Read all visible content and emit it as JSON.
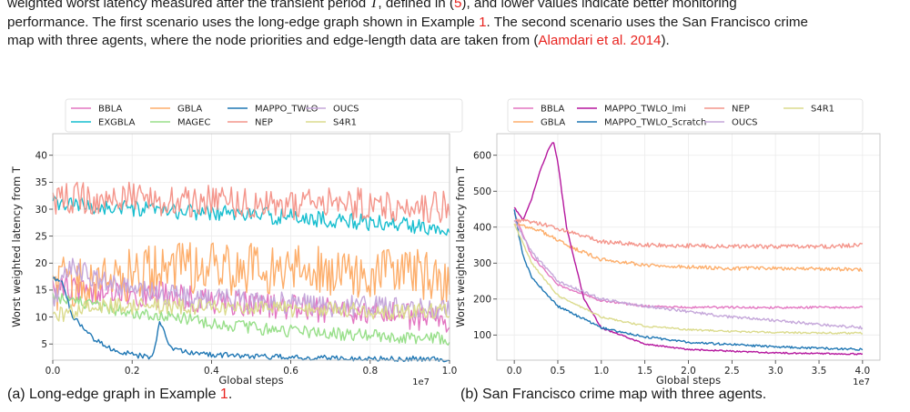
{
  "paragraph": {
    "line1_a": "weighted worst latency measured after the transient period ",
    "line1_symbol": "T",
    "line1_b": ", defined in (",
    "line1_eq": "5",
    "line1_c": "), and lower values indicate better monitoring",
    "line2_a": "performance. The first scenario uses the long-edge graph shown in Example ",
    "line2_ref": "1",
    "line2_b": ". The second scenario uses the San Francisco crime",
    "line3_a": "map with three agents, where the node priorities and edge-length data are taken from (",
    "line3_cite": "Alamdari et al. 2014",
    "line3_b": ")."
  },
  "captions": {
    "a_text": "(a) Long-edge graph in Example ",
    "a_ref": "1",
    "a_end": ".",
    "b_text": "(b) San Francisco crime map with three agents."
  },
  "colors": {
    "BBLA": "#e377c2",
    "EXGBLA": "#17becf",
    "GBLA": "#fdae6b",
    "MAGEC": "#98df8a",
    "MAPPO_TWLO": "#1f77b4",
    "MAPPO_TWLO_Imi": "#b5179e",
    "MAPPO_TWLO_Scratch": "#1f77b4",
    "NEP": "#f4958b",
    "OUCS": "#c5a7da",
    "S4R1": "#dbdb8d"
  },
  "chart_data": [
    {
      "type": "line",
      "xlabel": "Global steps",
      "ylabel": "Worst weighted latency from T",
      "x_multiplier": "1e7",
      "xlim": [
        0,
        1.0
      ],
      "ylim": [
        2,
        44
      ],
      "xticks": [
        0.0,
        0.2,
        0.4,
        0.6,
        0.8,
        1.0
      ],
      "yticks": [
        5,
        10,
        15,
        20,
        25,
        30,
        35,
        40
      ],
      "grid": true,
      "legend_position": "top",
      "legend_columns": 5,
      "legend": [
        "BBLA",
        "EXGBLA",
        "GBLA",
        "MAGEC",
        "MAPPO_TWLO",
        "NEP",
        "OUCS",
        "S4R1"
      ],
      "series": [
        {
          "name": "BBLA",
          "x": [
            0,
            0.1,
            0.2,
            0.3,
            0.4,
            0.5,
            0.6,
            0.7,
            0.8,
            0.9,
            1.0
          ],
          "values": [
            16,
            15,
            14.5,
            14,
            13,
            12.5,
            12,
            11,
            10.5,
            10,
            9.5
          ],
          "noise": 2.5
        },
        {
          "name": "EXGBLA",
          "x": [
            0,
            0.1,
            0.2,
            0.3,
            0.4,
            0.5,
            0.6,
            0.7,
            0.8,
            0.9,
            1.0
          ],
          "values": [
            31,
            30.5,
            30,
            29.5,
            29.5,
            29,
            28.5,
            28,
            27.5,
            27,
            26.5
          ],
          "noise": 1.5
        },
        {
          "name": "GBLA",
          "x": [
            0,
            0.1,
            0.2,
            0.3,
            0.4,
            0.5,
            0.6,
            0.7,
            0.8,
            0.9,
            1.0
          ],
          "values": [
            16,
            17,
            18,
            19,
            19,
            19,
            19,
            19,
            18,
            18,
            17
          ],
          "noise": 5
        },
        {
          "name": "MAGEC",
          "x": [
            0,
            0.1,
            0.2,
            0.3,
            0.4,
            0.5,
            0.6,
            0.7,
            0.8,
            0.9,
            1.0
          ],
          "values": [
            14,
            12,
            11,
            10,
            9,
            8,
            7.5,
            7,
            6.5,
            6.3,
            6
          ],
          "noise": 1.2
        },
        {
          "name": "MAPPO_TWLO",
          "x": [
            0,
            0.02,
            0.05,
            0.08,
            0.1,
            0.15,
            0.2,
            0.25,
            0.27,
            0.3,
            0.4,
            0.5,
            0.6,
            0.8,
            1.0
          ],
          "values": [
            17,
            17,
            10,
            8,
            6,
            4,
            3,
            2.5,
            9,
            4,
            3,
            2.8,
            2.5,
            2.3,
            2.2
          ],
          "noise": 0.5
        },
        {
          "name": "NEP",
          "x": [
            0,
            0.1,
            0.2,
            0.3,
            0.4,
            0.5,
            0.6,
            0.7,
            0.8,
            0.9,
            1.0
          ],
          "values": [
            32,
            32,
            32,
            31.5,
            31.5,
            31,
            31,
            31,
            31,
            30.5,
            30.5
          ],
          "noise": 3
        },
        {
          "name": "OUCS",
          "x": [
            0,
            0.05,
            0.1,
            0.2,
            0.3,
            0.4,
            0.5,
            0.6,
            0.7,
            0.8,
            0.9,
            1.0
          ],
          "values": [
            13,
            20,
            17,
            15,
            14,
            13.5,
            13,
            12.5,
            12,
            12,
            11.5,
            11.5
          ],
          "noise": 2
        },
        {
          "name": "S4R1",
          "x": [
            0,
            0.1,
            0.2,
            0.3,
            0.4,
            0.5,
            0.6,
            0.7,
            0.8,
            0.9,
            1.0
          ],
          "values": [
            10,
            12,
            12,
            12,
            12,
            11.5,
            11.5,
            11.5,
            11,
            11,
            11
          ],
          "noise": 1.5
        }
      ]
    },
    {
      "type": "line",
      "xlabel": "Global steps",
      "ylabel": "Worst weighted latency from T",
      "x_multiplier": "1e7",
      "xlim": [
        -0.2,
        4.2
      ],
      "ylim": [
        30,
        660
      ],
      "xticks": [
        0.0,
        0.5,
        1.0,
        1.5,
        2.0,
        2.5,
        3.0,
        3.5,
        4.0
      ],
      "yticks": [
        100,
        200,
        300,
        400,
        500,
        600
      ],
      "grid": true,
      "legend_position": "top",
      "legend_columns": 5,
      "legend": [
        "BBLA",
        "GBLA",
        "MAPPO_TWLO_Imi",
        "MAPPO_TWLO_Scratch",
        "NEP",
        "OUCS",
        "S4R1"
      ],
      "series": [
        {
          "name": "BBLA",
          "x": [
            0,
            0.2,
            0.5,
            1.0,
            1.5,
            2.0,
            2.5,
            3.0,
            3.5,
            4.0
          ],
          "values": [
            440,
            320,
            240,
            195,
            180,
            177,
            177,
            176,
            177,
            177
          ],
          "noise": 3
        },
        {
          "name": "GBLA",
          "x": [
            0,
            0.3,
            0.6,
            1.0,
            1.5,
            2.0,
            2.5,
            3.0,
            3.5,
            4.0
          ],
          "values": [
            410,
            390,
            350,
            310,
            295,
            290,
            285,
            285,
            284,
            282
          ],
          "noise": 5
        },
        {
          "name": "MAPPO_TWLO_Imi",
          "x": [
            0,
            0.1,
            0.2,
            0.3,
            0.4,
            0.45,
            0.5,
            0.6,
            0.8,
            1.0,
            1.5,
            2.0,
            3.0,
            4.0
          ],
          "values": [
            455,
            420,
            480,
            560,
            620,
            640,
            580,
            400,
            200,
            120,
            75,
            60,
            50,
            47
          ],
          "noise": 2
        },
        {
          "name": "MAPPO_TWLO_Scratch",
          "x": [
            0,
            0.05,
            0.1,
            0.2,
            0.5,
            1.0,
            1.5,
            2.0,
            3.0,
            4.0
          ],
          "values": [
            450,
            380,
            320,
            260,
            180,
            120,
            95,
            80,
            67,
            60
          ],
          "noise": 3
        },
        {
          "name": "NEP",
          "x": [
            0,
            0.3,
            0.6,
            1.0,
            1.5,
            2.0,
            2.5,
            3.0,
            3.5,
            4.0
          ],
          "values": [
            420,
            410,
            390,
            360,
            350,
            348,
            347,
            346,
            346,
            350
          ],
          "noise": 6
        },
        {
          "name": "OUCS",
          "x": [
            0,
            0.2,
            0.5,
            1.0,
            1.5,
            2.0,
            2.5,
            3.0,
            3.5,
            4.0
          ],
          "values": [
            420,
            330,
            250,
            200,
            180,
            165,
            150,
            140,
            130,
            120
          ],
          "noise": 4
        },
        {
          "name": "S4R1",
          "x": [
            0,
            0.2,
            0.5,
            1.0,
            1.5,
            2.0,
            2.5,
            3.0,
            3.5,
            4.0
          ],
          "values": [
            410,
            300,
            210,
            150,
            125,
            115,
            110,
            107,
            106,
            105
          ],
          "noise": 2.5
        }
      ]
    }
  ]
}
